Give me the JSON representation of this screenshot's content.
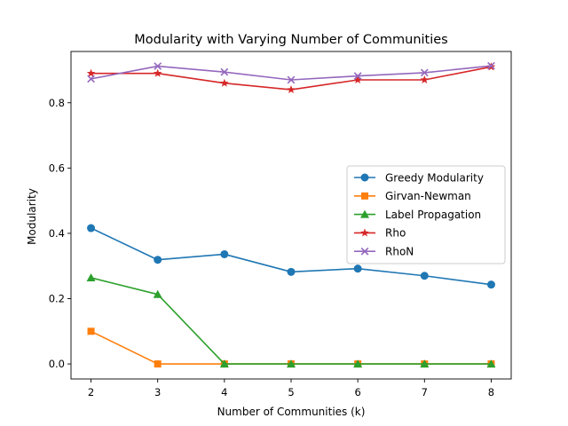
{
  "chart_data": {
    "type": "line",
    "title": "Modularity with Varying Number of Communities",
    "xlabel": "Number of Communities (k)",
    "ylabel": "Modularity",
    "x": [
      2,
      3,
      4,
      5,
      6,
      7,
      8
    ],
    "xlim": [
      1.7,
      8.3
    ],
    "ylim": [
      -0.046,
      0.957
    ],
    "xticks": [
      "2",
      "3",
      "4",
      "5",
      "6",
      "7",
      "8"
    ],
    "yticks": [
      {
        "value": 0.0,
        "label": "0.0"
      },
      {
        "value": 0.2,
        "label": "0.2"
      },
      {
        "value": 0.4,
        "label": "0.4"
      },
      {
        "value": 0.6,
        "label": "0.6"
      },
      {
        "value": 0.8,
        "label": "0.8"
      }
    ],
    "grid": false,
    "legend_position": "center-right",
    "series": [
      {
        "name": "Greedy Modularity",
        "color": "#1f77b4",
        "marker": "circle",
        "values": [
          0.416,
          0.319,
          0.336,
          0.282,
          0.292,
          0.27,
          0.243
        ]
      },
      {
        "name": "Girvan-Newman",
        "color": "#ff7f0e",
        "marker": "square",
        "values": [
          0.1,
          0.0,
          0.0,
          0.0,
          0.0,
          0.0,
          0.0
        ]
      },
      {
        "name": "Label Propagation",
        "color": "#2ca02c",
        "marker": "triangle",
        "values": [
          0.264,
          0.213,
          0.0,
          0.0,
          0.0,
          0.0,
          0.0
        ]
      },
      {
        "name": "Rho",
        "color": "#d62728",
        "marker": "star",
        "values": [
          0.89,
          0.89,
          0.86,
          0.84,
          0.87,
          0.87,
          0.91
        ]
      },
      {
        "name": "RhoN",
        "color": "#9467bd",
        "marker": "x",
        "values": [
          0.873,
          0.912,
          0.894,
          0.87,
          0.882,
          0.892,
          0.913
        ]
      }
    ]
  }
}
